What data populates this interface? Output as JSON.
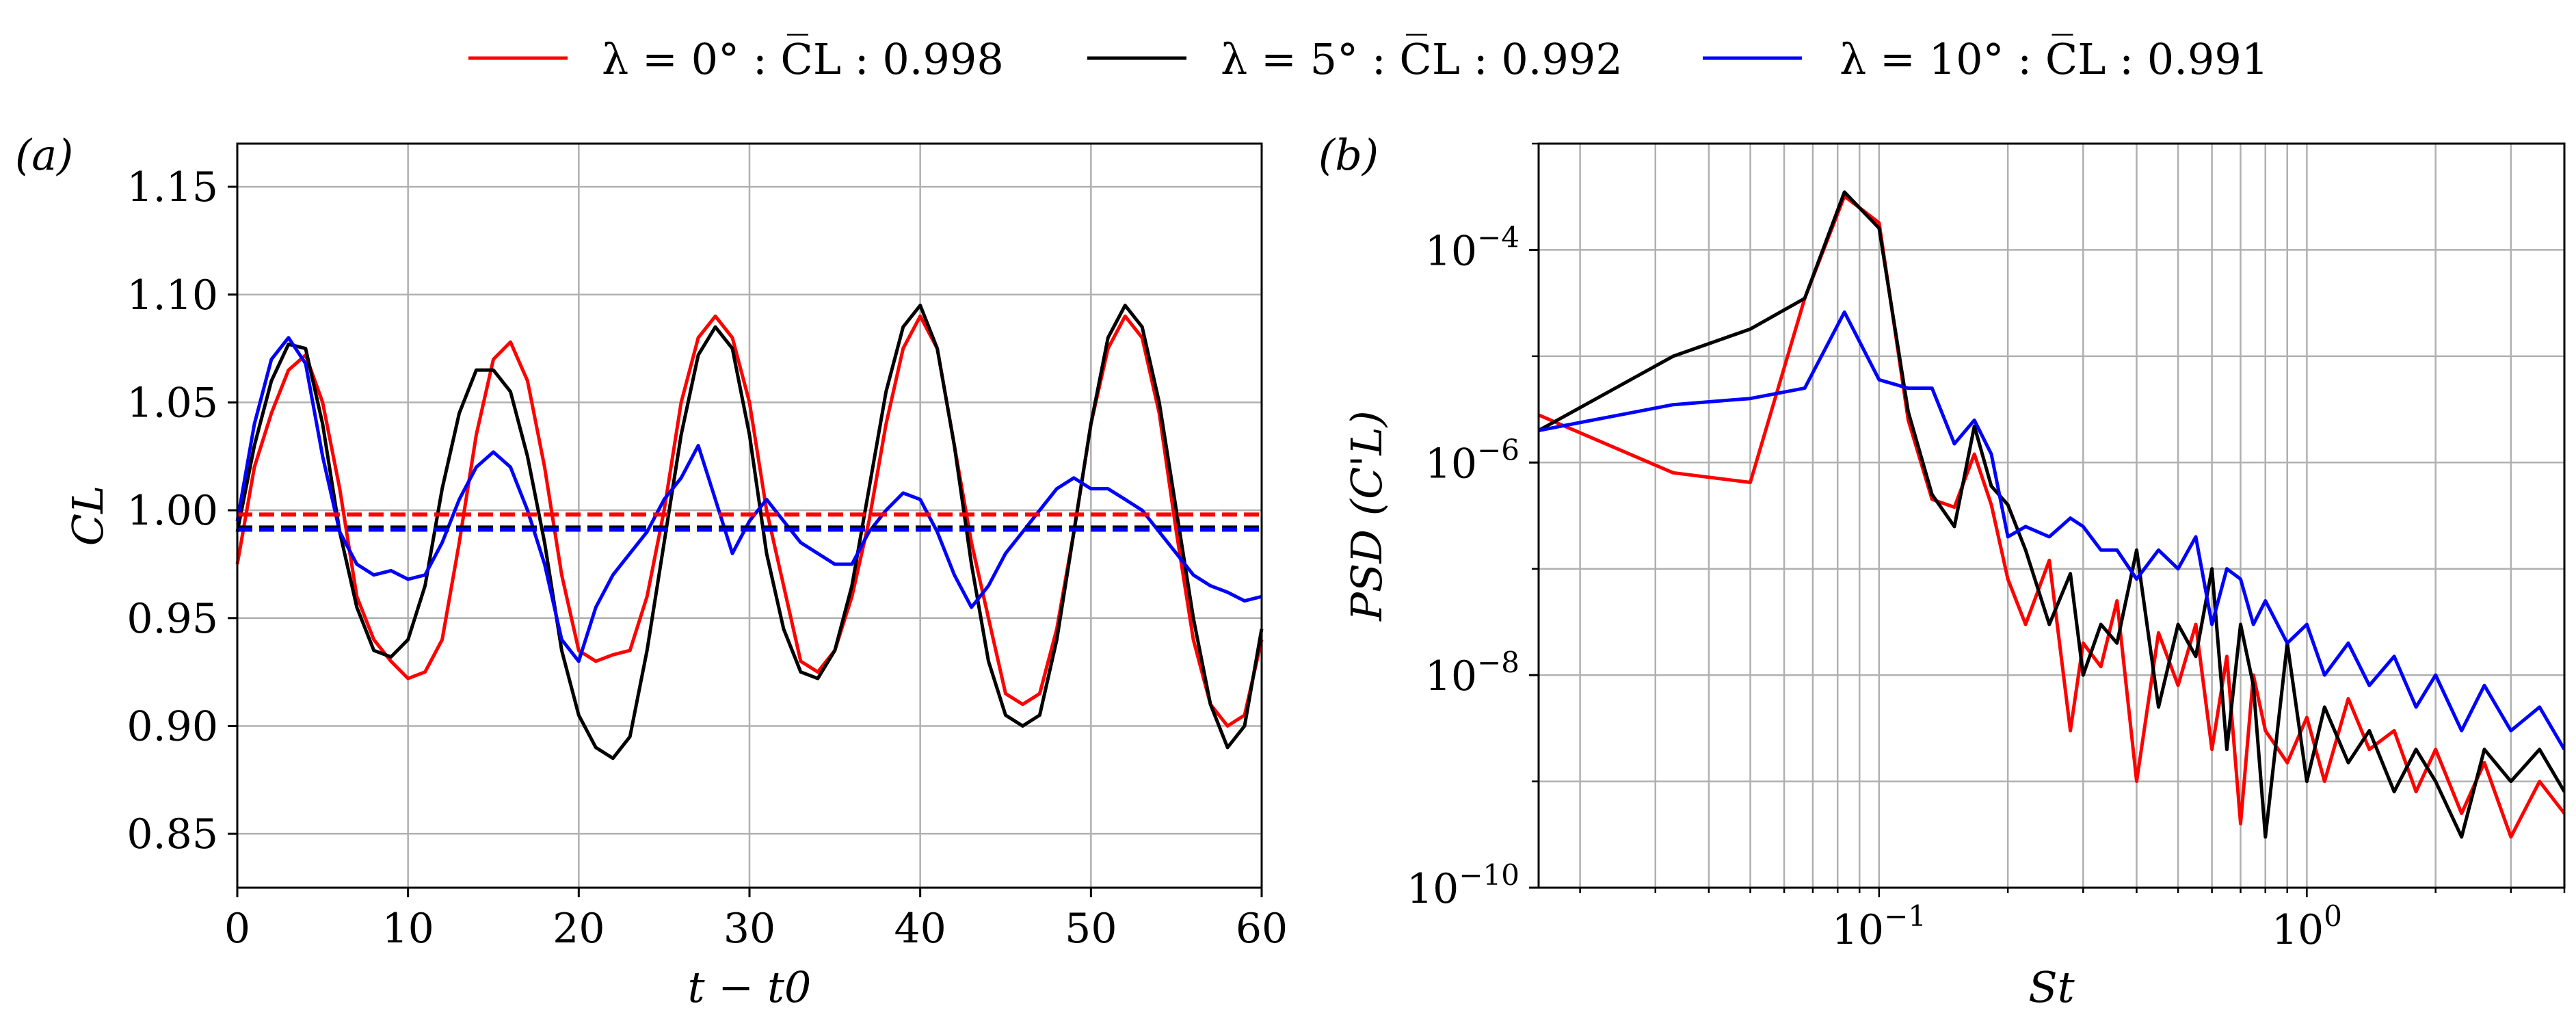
{
  "legend": {
    "items": [
      {
        "label": "λ = 0° : C̅L : 0.998",
        "color": "#ff0000"
      },
      {
        "label": "λ = 5° : C̅L : 0.992",
        "color": "#000000"
      },
      {
        "label": "λ = 10° : C̅L : 0.991",
        "color": "#0000ff"
      }
    ]
  },
  "chart_data": [
    {
      "panel_label": "(a)",
      "type": "line",
      "xlabel": "t − t0",
      "ylabel": "CL",
      "xlim": [
        0,
        60
      ],
      "ylim": [
        0.825,
        1.17
      ],
      "xticks": [
        0,
        10,
        20,
        30,
        40,
        50,
        60
      ],
      "xtick_labels": [
        "0",
        "10",
        "20",
        "30",
        "40",
        "50",
        "60"
      ],
      "yticks": [
        0.85,
        0.9,
        0.95,
        1.0,
        1.05,
        1.1,
        1.15
      ],
      "ytick_labels": [
        "0.85",
        "0.90",
        "0.95",
        "1.00",
        "1.05",
        "1.10",
        "1.15"
      ],
      "grid": true,
      "series": [
        {
          "name": "λ = 0°",
          "color": "#ff0000",
          "x": [
            0,
            1,
            2,
            3,
            4,
            5,
            6,
            7,
            8,
            9,
            10,
            11,
            12,
            13,
            14,
            15,
            16,
            17,
            18,
            19,
            20,
            21,
            22,
            23,
            24,
            25,
            26,
            27,
            28,
            29,
            30,
            31,
            32,
            33,
            34,
            35,
            36,
            37,
            38,
            39,
            40,
            41,
            42,
            43,
            44,
            45,
            46,
            47,
            48,
            49,
            50,
            51,
            52,
            53,
            54,
            55,
            56,
            57,
            58,
            59,
            60
          ],
          "y": [
            0.975,
            1.02,
            1.045,
            1.065,
            1.072,
            1.05,
            1.01,
            0.96,
            0.94,
            0.93,
            0.922,
            0.925,
            0.94,
            0.985,
            1.035,
            1.07,
            1.078,
            1.06,
            1.02,
            0.97,
            0.935,
            0.93,
            0.933,
            0.935,
            0.96,
            1.0,
            1.05,
            1.08,
            1.09,
            1.08,
            1.05,
            1.0,
            0.965,
            0.93,
            0.925,
            0.935,
            0.96,
            0.995,
            1.04,
            1.075,
            1.09,
            1.075,
            1.03,
            0.985,
            0.95,
            0.915,
            0.91,
            0.915,
            0.945,
            0.99,
            1.04,
            1.075,
            1.09,
            1.08,
            1.045,
            0.99,
            0.94,
            0.91,
            0.9,
            0.905,
            0.94
          ]
        },
        {
          "name": "λ = 5°",
          "color": "#000000",
          "x": [
            0,
            1,
            2,
            3,
            4,
            5,
            6,
            7,
            8,
            9,
            10,
            11,
            12,
            13,
            14,
            15,
            16,
            17,
            18,
            19,
            20,
            21,
            22,
            23,
            24,
            25,
            26,
            27,
            28,
            29,
            30,
            31,
            32,
            33,
            34,
            35,
            36,
            37,
            38,
            39,
            40,
            41,
            42,
            43,
            44,
            45,
            46,
            47,
            48,
            49,
            50,
            51,
            52,
            53,
            54,
            55,
            56,
            57,
            58,
            59,
            60
          ],
          "y": [
            0.99,
            1.03,
            1.06,
            1.077,
            1.075,
            1.04,
            0.99,
            0.955,
            0.935,
            0.932,
            0.94,
            0.965,
            1.01,
            1.045,
            1.065,
            1.065,
            1.055,
            1.025,
            0.985,
            0.935,
            0.905,
            0.89,
            0.885,
            0.895,
            0.935,
            0.985,
            1.035,
            1.072,
            1.085,
            1.075,
            1.035,
            0.98,
            0.945,
            0.925,
            0.922,
            0.935,
            0.965,
            1.01,
            1.055,
            1.085,
            1.095,
            1.075,
            1.03,
            0.975,
            0.93,
            0.905,
            0.9,
            0.905,
            0.94,
            0.99,
            1.04,
            1.08,
            1.095,
            1.085,
            1.05,
            1.0,
            0.95,
            0.91,
            0.89,
            0.9,
            0.945
          ]
        },
        {
          "name": "λ = 10°",
          "color": "#0000ff",
          "x": [
            0,
            1,
            2,
            3,
            4,
            5,
            6,
            7,
            8,
            9,
            10,
            11,
            12,
            13,
            14,
            15,
            16,
            17,
            18,
            19,
            20,
            21,
            22,
            23,
            24,
            25,
            26,
            27,
            28,
            29,
            30,
            31,
            32,
            33,
            34,
            35,
            36,
            37,
            38,
            39,
            40,
            41,
            42,
            43,
            44,
            45,
            46,
            47,
            48,
            49,
            50,
            51,
            52,
            53,
            54,
            55,
            56,
            57,
            58,
            59,
            60
          ],
          "y": [
            0.995,
            1.04,
            1.07,
            1.08,
            1.068,
            1.025,
            0.99,
            0.975,
            0.97,
            0.972,
            0.968,
            0.97,
            0.985,
            1.005,
            1.02,
            1.027,
            1.02,
            1.0,
            0.975,
            0.94,
            0.93,
            0.955,
            0.97,
            0.98,
            0.99,
            1.005,
            1.015,
            1.03,
            1.005,
            0.98,
            0.995,
            1.005,
            0.995,
            0.985,
            0.98,
            0.975,
            0.975,
            0.99,
            1.0,
            1.008,
            1.005,
            0.99,
            0.97,
            0.955,
            0.965,
            0.98,
            0.99,
            1.0,
            1.01,
            1.015,
            1.01,
            1.01,
            1.005,
            1.0,
            0.99,
            0.98,
            0.97,
            0.965,
            0.962,
            0.958,
            0.96
          ]
        }
      ],
      "mean_lines": [
        {
          "name": "λ = 0°",
          "value": 0.998,
          "color": "#ff0000",
          "style": "dashed"
        },
        {
          "name": "λ = 5°",
          "value": 0.992,
          "color": "#000000",
          "style": "dashed"
        },
        {
          "name": "λ = 10°",
          "value": 0.991,
          "color": "#0000ff",
          "style": "dashed"
        }
      ]
    },
    {
      "panel_label": "(b)",
      "type": "line",
      "xlabel": "St",
      "ylabel": "PSD (C'L)",
      "xscale": "log",
      "yscale": "log",
      "xlim": [
        0.016,
        4.0
      ],
      "ylim": [
        1e-10,
        0.001
      ],
      "xticks": [
        0.1,
        1
      ],
      "xtick_labels": [
        "10",
        "10"
      ],
      "xtick_exponents": [
        "−1",
        "0"
      ],
      "yticks": [
        1e-10,
        1e-08,
        1e-06,
        0.0001
      ],
      "ytick_labels": [
        "10",
        "10",
        "10",
        "10"
      ],
      "ytick_exponents": [
        "−10",
        "−8",
        "−6",
        "−4"
      ],
      "grid": true,
      "series": [
        {
          "name": "λ = 0°",
          "color": "#ff0000",
          "x": [
            0.016,
            0.033,
            0.05,
            0.067,
            0.083,
            0.1,
            0.117,
            0.133,
            0.15,
            0.167,
            0.183,
            0.2,
            0.22,
            0.25,
            0.28,
            0.3,
            0.33,
            0.36,
            0.4,
            0.45,
            0.5,
            0.55,
            0.6,
            0.65,
            0.7,
            0.75,
            0.8,
            0.9,
            1.0,
            1.1,
            1.25,
            1.4,
            1.6,
            1.8,
            2.0,
            2.3,
            2.6,
            3.0,
            3.5,
            4.0
          ],
          "y": [
            2.8e-06,
            8e-07,
            6.5e-07,
            3.5e-05,
            0.00032,
            0.00018,
            2.5e-06,
            4.5e-07,
            3.8e-07,
            1.2e-06,
            4e-07,
            8e-08,
            3e-08,
            1.2e-07,
            3e-09,
            2e-08,
            1.2e-08,
            5e-08,
            1e-09,
            2.5e-08,
            8e-09,
            3e-08,
            2e-09,
            1.5e-08,
            4e-10,
            1e-08,
            3e-09,
            1.5e-09,
            4e-09,
            1e-09,
            6e-09,
            2e-09,
            3e-09,
            8e-10,
            2e-09,
            5e-10,
            1.5e-09,
            3e-10,
            1e-09,
            5e-10
          ]
        },
        {
          "name": "λ = 5°",
          "color": "#000000",
          "x": [
            0.016,
            0.033,
            0.05,
            0.067,
            0.083,
            0.1,
            0.117,
            0.133,
            0.15,
            0.167,
            0.183,
            0.2,
            0.22,
            0.25,
            0.28,
            0.3,
            0.33,
            0.36,
            0.4,
            0.45,
            0.5,
            0.55,
            0.6,
            0.65,
            0.7,
            0.75,
            0.8,
            0.9,
            1.0,
            1.1,
            1.25,
            1.4,
            1.6,
            1.8,
            2.0,
            2.3,
            2.6,
            3.0,
            3.5,
            4.0
          ],
          "y": [
            2e-06,
            1e-05,
            1.8e-05,
            3.5e-05,
            0.00035,
            0.00016,
            3e-06,
            5e-07,
            2.5e-07,
            2.2e-06,
            6e-07,
            4e-07,
            1.5e-07,
            3e-08,
            9e-08,
            1e-08,
            3e-08,
            2e-08,
            1.5e-07,
            5e-09,
            3e-08,
            1.5e-08,
            1e-07,
            2e-09,
            3e-08,
            8e-09,
            3e-10,
            2e-08,
            1e-09,
            5e-09,
            1.5e-09,
            3e-09,
            8e-10,
            2e-09,
            1e-09,
            3e-10,
            2e-09,
            1e-09,
            2e-09,
            8e-10
          ]
        },
        {
          "name": "λ = 10°",
          "color": "#0000ff",
          "x": [
            0.016,
            0.033,
            0.05,
            0.067,
            0.083,
            0.1,
            0.117,
            0.133,
            0.15,
            0.167,
            0.183,
            0.2,
            0.22,
            0.25,
            0.28,
            0.3,
            0.33,
            0.36,
            0.4,
            0.45,
            0.5,
            0.55,
            0.6,
            0.65,
            0.7,
            0.75,
            0.8,
            0.9,
            1.0,
            1.1,
            1.25,
            1.4,
            1.6,
            1.8,
            2.0,
            2.3,
            2.6,
            3.0,
            3.5,
            4.0
          ],
          "y": [
            2e-06,
            3.5e-06,
            4e-06,
            5e-06,
            2.6e-05,
            6e-06,
            5e-06,
            5e-06,
            1.5e-06,
            2.5e-06,
            1.2e-06,
            2e-07,
            2.5e-07,
            2e-07,
            3e-07,
            2.5e-07,
            1.5e-07,
            1.5e-07,
            8e-08,
            1.5e-07,
            1e-07,
            2e-07,
            3e-08,
            1e-07,
            8e-08,
            3e-08,
            5e-08,
            2e-08,
            3e-08,
            1e-08,
            2e-08,
            8e-09,
            1.5e-08,
            5e-09,
            1e-08,
            3e-09,
            8e-09,
            3e-09,
            5e-09,
            2e-09
          ]
        }
      ]
    }
  ]
}
